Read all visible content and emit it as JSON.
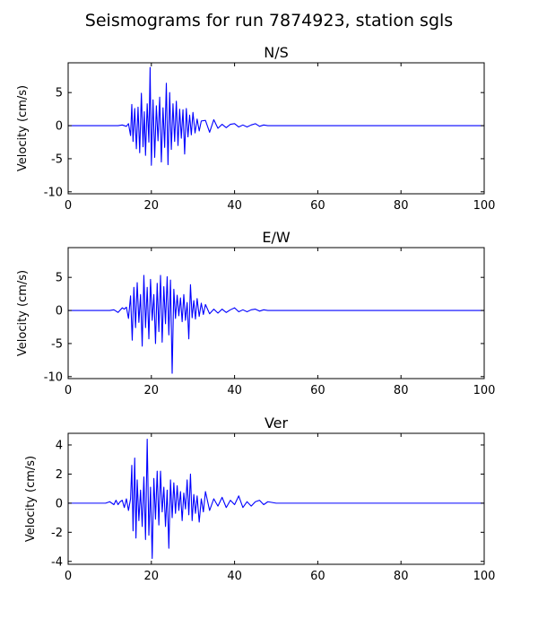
{
  "figure": {
    "title": "Seismograms for run 7874923, station sgls"
  },
  "chart_data": [
    {
      "type": "line",
      "title": "N/S",
      "xlabel": "",
      "ylabel": "Velocity (cm/s)",
      "xlim": [
        0,
        100
      ],
      "ylim": [
        -10.3,
        9.5
      ],
      "xticks": [
        0,
        20,
        40,
        60,
        80,
        100
      ],
      "yticks": [
        -10,
        -5,
        0,
        5
      ],
      "grid": false,
      "series": [
        {
          "color": "#0000ff",
          "x": [
            0,
            10,
            12,
            13,
            14,
            14.5,
            15,
            15.3,
            15.6,
            16,
            16.4,
            16.8,
            17.2,
            17.6,
            18,
            18.3,
            18.6,
            19,
            19.4,
            19.7,
            20,
            20.4,
            20.8,
            21.2,
            21.6,
            22,
            22.4,
            22.8,
            23.2,
            23.6,
            24,
            24.4,
            24.8,
            25.2,
            25.6,
            26,
            26.4,
            26.8,
            27.2,
            27.6,
            28,
            28.4,
            28.8,
            29.2,
            29.6,
            30,
            30.5,
            31,
            31.5,
            32,
            33,
            34,
            35,
            36,
            37,
            38,
            39,
            40,
            41,
            42,
            43,
            44,
            45,
            46,
            47,
            48,
            50,
            60,
            100
          ],
          "y": [
            0,
            0,
            0,
            0.1,
            -0.1,
            0.3,
            -1.5,
            3.2,
            -2.4,
            2.6,
            -3.5,
            2.8,
            -4.1,
            4.9,
            -3.2,
            2.1,
            -4.5,
            3.3,
            -2.5,
            8.8,
            -6.0,
            3.9,
            -4.8,
            3.0,
            -2.3,
            4.3,
            -5.5,
            2.7,
            -3.3,
            6.4,
            -5.9,
            5.0,
            -3.6,
            3.3,
            -2.4,
            3.7,
            -3.0,
            2.5,
            -1.9,
            2.4,
            -4.3,
            2.6,
            -1.7,
            1.6,
            -1.4,
            2.0,
            -1.1,
            1.0,
            -0.8,
            0.7,
            0.8,
            -1.0,
            0.9,
            -0.4,
            0.2,
            -0.3,
            0.2,
            0.3,
            -0.2,
            0.1,
            -0.2,
            0.1,
            0.3,
            -0.1,
            0.1,
            0,
            0,
            0,
            0
          ]
        }
      ]
    },
    {
      "type": "line",
      "title": "E/W",
      "xlabel": "",
      "ylabel": "Velocity (cm/s)",
      "xlim": [
        0,
        100
      ],
      "ylim": [
        -10.3,
        9.5
      ],
      "xticks": [
        0,
        20,
        40,
        60,
        80,
        100
      ],
      "yticks": [
        -10,
        -5,
        0,
        5
      ],
      "grid": false,
      "series": [
        {
          "color": "#0000ff",
          "x": [
            0,
            10,
            11,
            12,
            13,
            13.5,
            14,
            14.5,
            15,
            15.4,
            15.8,
            16.2,
            16.6,
            17,
            17.4,
            17.8,
            18.2,
            18.6,
            19,
            19.4,
            19.8,
            20.2,
            20.6,
            21,
            21.4,
            21.8,
            22.2,
            22.6,
            23,
            23.4,
            23.8,
            24.2,
            24.6,
            25,
            25.4,
            25.8,
            26.2,
            26.6,
            27,
            27.4,
            27.8,
            28.2,
            28.6,
            29,
            29.4,
            29.8,
            30.2,
            30.6,
            31,
            31.5,
            32,
            32.5,
            33,
            34,
            35,
            36,
            37,
            38,
            39,
            40,
            41,
            42,
            43,
            44,
            45,
            46,
            47,
            48,
            50,
            60,
            100
          ],
          "y": [
            0,
            0,
            0.1,
            -0.3,
            0.4,
            0.2,
            0.5,
            -1.2,
            2.2,
            -4.5,
            3.5,
            -2.6,
            4.2,
            -1.8,
            2.4,
            -5.4,
            5.3,
            -2.6,
            3.5,
            -4.3,
            4.7,
            -1.5,
            2.4,
            -5.0,
            4.1,
            -3.2,
            5.3,
            -4.8,
            3.6,
            -2.0,
            5.1,
            -3.7,
            4.6,
            -9.5,
            3.2,
            -1.2,
            2.3,
            -0.8,
            1.9,
            -1.7,
            2.4,
            -1.5,
            1.2,
            -4.3,
            3.9,
            -1.1,
            1.5,
            -1.3,
            1.8,
            -0.9,
            1.1,
            -0.6,
            0.9,
            -0.5,
            0.2,
            -0.4,
            0.2,
            -0.3,
            0.1,
            0.4,
            -0.2,
            0.1,
            -0.2,
            0.1,
            0.2,
            -0.1,
            0.1,
            0,
            0,
            0,
            0
          ]
        }
      ]
    },
    {
      "type": "line",
      "title": "Ver",
      "xlabel": "",
      "ylabel": "Velocity (cm/s)",
      "xlim": [
        0,
        100
      ],
      "ylim": [
        -4.2,
        4.8
      ],
      "xticks": [
        0,
        20,
        40,
        60,
        80,
        100
      ],
      "yticks": [
        -4,
        -2,
        0,
        2,
        4
      ],
      "grid": false,
      "series": [
        {
          "color": "#0000ff",
          "x": [
            0,
            9,
            10,
            11,
            11.5,
            12,
            12.5,
            13,
            13.5,
            14,
            14.5,
            15,
            15.3,
            15.6,
            16,
            16.3,
            16.6,
            17,
            17.4,
            17.8,
            18.2,
            18.6,
            19,
            19.4,
            19.8,
            20.2,
            20.6,
            21,
            21.4,
            21.8,
            22.2,
            22.6,
            23,
            23.4,
            23.8,
            24.2,
            24.6,
            25,
            25.4,
            25.8,
            26.2,
            26.6,
            27,
            27.4,
            27.8,
            28.2,
            28.6,
            29,
            29.4,
            29.8,
            30.2,
            30.6,
            31,
            31.5,
            32,
            32.5,
            33,
            34,
            35,
            36,
            37,
            38,
            39,
            40,
            41,
            42,
            43,
            44,
            45,
            46,
            47,
            48,
            50,
            60,
            100
          ],
          "y": [
            0,
            0,
            0.1,
            -0.1,
            0.2,
            -0.1,
            0.1,
            0.2,
            -0.3,
            0.3,
            -0.5,
            0.3,
            2.6,
            -1.9,
            3.1,
            -2.4,
            1.6,
            -1.2,
            0.9,
            -1.6,
            1.8,
            -2.5,
            4.4,
            -2.2,
            1.1,
            -3.8,
            1.7,
            -1.1,
            2.2,
            -1.5,
            2.2,
            -0.6,
            1.1,
            -1.6,
            0.9,
            -3.1,
            1.6,
            -1.0,
            1.4,
            -0.7,
            1.2,
            -0.5,
            0.8,
            -1.2,
            0.7,
            -0.4,
            1.6,
            -0.8,
            2.0,
            -1.2,
            0.6,
            -0.7,
            0.5,
            -1.3,
            0.3,
            -0.6,
            0.8,
            -0.5,
            0.3,
            -0.2,
            0.4,
            -0.3,
            0.2,
            -0.1,
            0.5,
            -0.3,
            0.1,
            -0.2,
            0.1,
            0.2,
            -0.1,
            0.1,
            0,
            0,
            0
          ]
        }
      ]
    }
  ]
}
